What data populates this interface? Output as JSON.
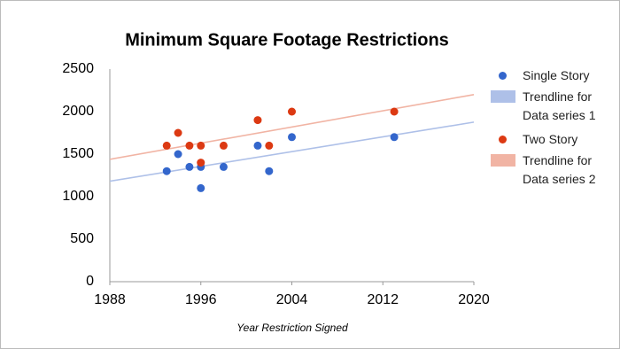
{
  "chart_data": {
    "type": "scatter",
    "title": "Minimum Square Footage Restrictions",
    "x_label": "Year Restriction Signed",
    "xlim": [
      1988,
      2020
    ],
    "xticks": [
      1988,
      1996,
      2004,
      2012,
      2020
    ],
    "ylim": [
      0,
      2500
    ],
    "yticks": [
      0,
      500,
      1000,
      1500,
      2000,
      2500
    ],
    "grid": false,
    "legend": "right",
    "series": [
      {
        "name": "Single Story",
        "color": "#3366cc",
        "x": [
          1993,
          1994,
          1995,
          1996,
          1996,
          1998,
          2001,
          2002,
          2004,
          2013
        ],
        "values": [
          1300,
          1500,
          1350,
          1350,
          1100,
          1350,
          1600,
          1300,
          1700,
          1700
        ],
        "trendline": {
          "name": "Trendline for Data series 1",
          "color": "#aec0e8"
        }
      },
      {
        "name": "Two Story",
        "color": "#dc3912",
        "x": [
          1993,
          1994,
          1995,
          1996,
          1996,
          1998,
          2001,
          2002,
          2004,
          2013
        ],
        "values": [
          1600,
          1750,
          1600,
          1600,
          1400,
          1600,
          1900,
          1600,
          2000,
          2000
        ],
        "trendline": {
          "name": "Trendline for Data series 2",
          "color": "#f1b4a4"
        }
      }
    ]
  }
}
